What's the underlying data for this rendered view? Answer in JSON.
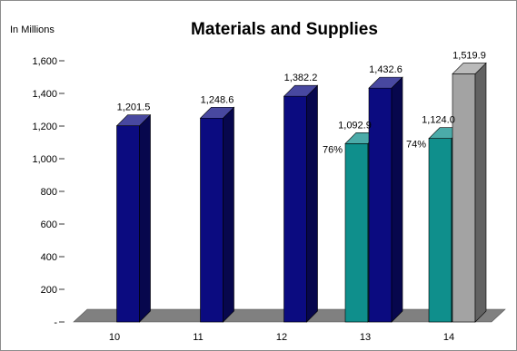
{
  "chart_data": {
    "type": "bar",
    "title": "Materials and Supplies",
    "unit_label": "In Millions",
    "categories": [
      "10",
      "11",
      "12",
      "13",
      "14"
    ],
    "yticks": [
      "-",
      "200",
      "400",
      "600",
      "800",
      "1,000",
      "1,200",
      "1,400",
      "1,600"
    ],
    "ylim": [
      0,
      1600
    ],
    "grid": false,
    "legend": "none",
    "bars": [
      {
        "category": "10",
        "value": 1201.5,
        "label": "1,201.5",
        "color": "#0b0b80",
        "annotation": ""
      },
      {
        "category": "11",
        "value": 1248.6,
        "label": "1,248.6",
        "color": "#0b0b80",
        "annotation": ""
      },
      {
        "category": "12",
        "value": 1382.2,
        "label": "1,382.2",
        "color": "#0b0b80",
        "annotation": ""
      },
      {
        "category": "13",
        "value": 1092.9,
        "label": "1,092.9",
        "color": "#0f8f8c",
        "annotation": "76%"
      },
      {
        "category": "13",
        "value": 1432.6,
        "label": "1,432.6",
        "color": "#0b0b80",
        "annotation": ""
      },
      {
        "category": "14",
        "value": 1124.0,
        "label": "1,124.0",
        "color": "#0f8f8c",
        "annotation": "74%"
      },
      {
        "category": "14",
        "value": 1519.9,
        "label": "1,519.9",
        "color": "#a3a3a3",
        "annotation": ""
      }
    ]
  }
}
